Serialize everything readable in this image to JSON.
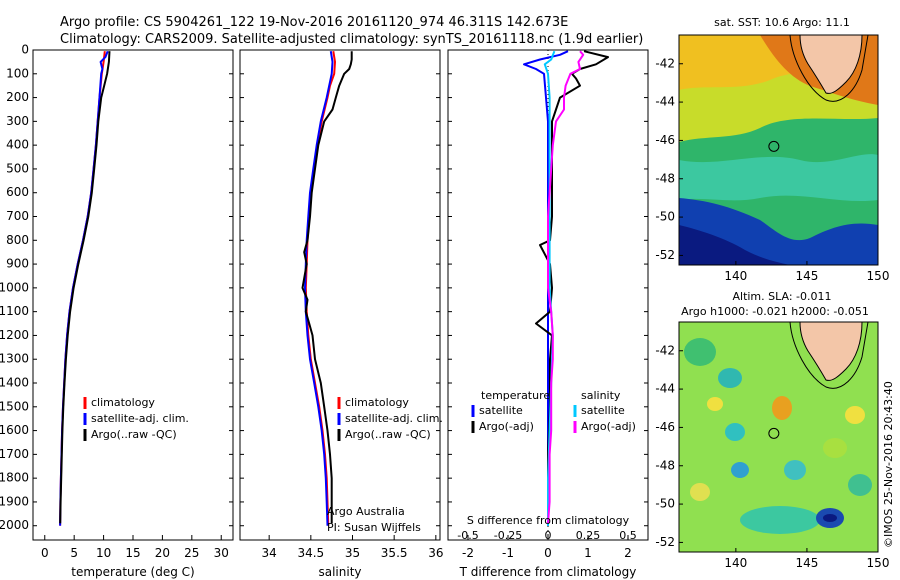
{
  "header": {
    "line1": "Argo profile: CS 5904261_122 19-Nov-2016 20161120_974 46.311S 142.673E",
    "line2": "Climatology: CARS2009. Satellite-adjusted climatology: synTS_20161118.nc (1.9d earlier)"
  },
  "credit": "©IMOS 25-Nov-2016 20:43:40",
  "colors": {
    "climatology": "#ff0000",
    "satellite": "#0000ff",
    "argo": "#000000",
    "sat_light": "#00c8ff",
    "argo_adj": "#ff00ff",
    "frame": "#000000"
  },
  "depth_ticks": [
    0,
    100,
    200,
    300,
    400,
    500,
    600,
    700,
    800,
    900,
    1000,
    1100,
    1200,
    1300,
    1400,
    1500,
    1600,
    1700,
    1800,
    1900,
    2000
  ],
  "chart_data": [
    {
      "id": "temperature",
      "type": "line",
      "xlabel": "temperature (deg C)",
      "xlim": [
        -2,
        32
      ],
      "ylim": [
        2060,
        0
      ],
      "xticks": [
        0,
        5,
        10,
        15,
        20,
        25,
        30
      ],
      "legend": {
        "position": "lower-center",
        "entries": [
          {
            "label": "climatology",
            "color_key": "climatology"
          },
          {
            "label": "satellite-adj. clim.",
            "color_key": "satellite"
          },
          {
            "label": "Argo(..raw -QC)",
            "color_key": "argo"
          }
        ]
      },
      "series": [
        {
          "name": "climatology",
          "color_key": "climatology",
          "depth": [
            5,
            50,
            100,
            200,
            300,
            400,
            500,
            600,
            700,
            800,
            900,
            1000,
            1100,
            1200,
            1300,
            1400,
            1500,
            1600,
            1700,
            1800,
            1900,
            2000
          ],
          "values": [
            10.2,
            10.0,
            9.7,
            9.3,
            9.0,
            8.7,
            8.3,
            7.9,
            7.3,
            6.5,
            5.6,
            4.8,
            4.2,
            3.8,
            3.5,
            3.3,
            3.1,
            2.95,
            2.85,
            2.75,
            2.65,
            2.6
          ]
        },
        {
          "name": "satellite-adj. clim.",
          "color_key": "satellite",
          "depth": [
            5,
            30,
            50,
            80,
            100,
            200,
            300,
            400,
            500,
            600,
            700,
            800,
            900,
            1000,
            1100,
            1200,
            1300,
            1400,
            1500,
            1600,
            1700,
            1800,
            1900,
            2000
          ],
          "values": [
            10.7,
            10.3,
            9.5,
            9.8,
            9.6,
            9.3,
            9.0,
            8.7,
            8.3,
            7.9,
            7.3,
            6.5,
            5.6,
            4.8,
            4.2,
            3.8,
            3.5,
            3.3,
            3.1,
            2.95,
            2.85,
            2.75,
            2.65,
            2.6
          ]
        },
        {
          "name": "Argo(..raw -QC)",
          "color_key": "argo",
          "depth": [
            5,
            50,
            100,
            150,
            200,
            300,
            400,
            500,
            600,
            700,
            800,
            900,
            1000,
            1100,
            1200,
            1300,
            1400,
            1500,
            1600,
            1700,
            1800,
            1900,
            1990
          ],
          "values": [
            11.0,
            10.9,
            10.6,
            10.1,
            9.6,
            9.1,
            8.8,
            8.4,
            8.0,
            7.4,
            6.6,
            5.7,
            4.9,
            4.3,
            3.9,
            3.6,
            3.35,
            3.15,
            3.0,
            2.9,
            2.8,
            2.7,
            2.62
          ]
        }
      ]
    },
    {
      "id": "salinity",
      "type": "line",
      "xlabel": "salinity",
      "xlim": [
        33.65,
        36.05
      ],
      "ylim": [
        2060,
        0
      ],
      "xticks": [
        34,
        34.5,
        35,
        35.5,
        36
      ],
      "legend": {
        "position": "lower-center",
        "entries": [
          {
            "label": "climatology",
            "color_key": "climatology"
          },
          {
            "label": "satellite-adj. clim.",
            "color_key": "satellite"
          },
          {
            "label": "Argo(..raw -QC)",
            "color_key": "argo"
          }
        ]
      },
      "annotation": {
        "line1": "Argo Australia",
        "line2": "PI: Susan Wijffels"
      },
      "series": [
        {
          "name": "climatology",
          "color_key": "climatology",
          "depth": [
            5,
            50,
            100,
            150,
            200,
            300,
            400,
            500,
            600,
            700,
            800,
            900,
            1000,
            1100,
            1200,
            1300,
            1400,
            1500,
            1600,
            1700,
            1800,
            1900,
            2000
          ],
          "values": [
            34.77,
            34.79,
            34.78,
            34.73,
            34.7,
            34.63,
            34.58,
            34.54,
            34.5,
            34.48,
            34.46,
            34.45,
            34.44,
            34.45,
            34.47,
            34.5,
            34.55,
            34.6,
            34.64,
            34.67,
            34.69,
            34.7,
            34.71
          ]
        },
        {
          "name": "satellite-adj. clim.",
          "color_key": "satellite",
          "depth": [
            5,
            50,
            100,
            150,
            200,
            300,
            400,
            500,
            600,
            700,
            800,
            900,
            1000,
            1100,
            1200,
            1300,
            1400,
            1500,
            1600,
            1700,
            1800,
            1900,
            2000
          ],
          "values": [
            34.74,
            34.76,
            34.75,
            34.72,
            34.69,
            34.62,
            34.57,
            34.53,
            34.49,
            34.47,
            34.45,
            34.44,
            34.43,
            34.44,
            34.46,
            34.49,
            34.54,
            34.59,
            34.63,
            34.66,
            34.68,
            34.69,
            34.7
          ]
        },
        {
          "name": "Argo(..raw -QC)",
          "color_key": "argo",
          "depth": [
            5,
            40,
            60,
            80,
            100,
            150,
            200,
            250,
            300,
            400,
            500,
            600,
            700,
            800,
            850,
            900,
            1000,
            1050,
            1100,
            1150,
            1200,
            1300,
            1400,
            1500,
            1600,
            1700,
            1800,
            1900,
            1990
          ],
          "values": [
            34.99,
            34.99,
            34.98,
            34.96,
            34.9,
            34.84,
            34.8,
            34.76,
            34.66,
            34.59,
            34.55,
            34.51,
            34.49,
            34.46,
            34.42,
            34.45,
            34.4,
            34.46,
            34.44,
            34.48,
            34.52,
            34.55,
            34.62,
            34.66,
            34.7,
            34.73,
            34.75,
            34.75,
            34.75
          ]
        }
      ]
    },
    {
      "id": "differences",
      "type": "line",
      "xlabel": "T difference from climatology",
      "xlabel_top": "S difference from climatology",
      "xlim": [
        -2.5,
        2.5
      ],
      "ylim": [
        2060,
        0
      ],
      "xticks_bottom": [
        -2,
        -1,
        0,
        1,
        2
      ],
      "xticks_top": [
        -0.5,
        -0.25,
        0,
        0.25,
        0.5
      ],
      "xticks_top_labels": [
        "-0.5",
        "-0.25",
        "0",
        "0.25",
        "0.5"
      ],
      "legend": {
        "position": "lower-center",
        "temperature_header": "temperature",
        "salinity_header": "salinity",
        "entries": [
          {
            "label": "satellite",
            "color_key": "satellite"
          },
          {
            "label": "Argo(-adj)",
            "color_key": "argo"
          },
          {
            "label": "satellite",
            "color_key": "sat_light"
          },
          {
            "label": "Argo(-adj)",
            "color_key": "argo_adj"
          }
        ]
      },
      "series": [
        {
          "name": "T satellite",
          "color_key": "satellite",
          "depth": [
            5,
            20,
            40,
            60,
            80,
            100,
            200,
            300,
            400,
            600,
            800,
            1000,
            1200,
            1600,
            2000
          ],
          "values": [
            0.5,
            0.3,
            -0.2,
            -0.6,
            -0.3,
            -0.1,
            -0.05,
            0.0,
            0.0,
            0.0,
            0.0,
            0.0,
            0.0,
            0.0,
            0.0
          ]
        },
        {
          "name": "T Argo(-adj)",
          "color_key": "argo",
          "depth": [
            5,
            30,
            60,
            80,
            100,
            120,
            150,
            200,
            250,
            300,
            400,
            500,
            700,
            800,
            820,
            900,
            1000,
            1100,
            1150,
            1200,
            1300,
            1500,
            1700,
            1900,
            1990
          ],
          "values": [
            0.9,
            1.5,
            1.2,
            0.8,
            0.6,
            0.7,
            0.8,
            0.3,
            0.2,
            0.1,
            0.1,
            0.1,
            0.1,
            0.05,
            -0.2,
            0.05,
            0.1,
            0.05,
            -0.3,
            0.1,
            0.05,
            0.05,
            0.0,
            0.0,
            0.0
          ]
        },
        {
          "name": "S satellite",
          "color_key": "sat_light",
          "depth": [
            5,
            40,
            60,
            100,
            200,
            300,
            400,
            600,
            800,
            1000,
            1200,
            1400,
            1600,
            1800,
            2000
          ],
          "values": [
            0.04,
            0.02,
            -0.02,
            0.0,
            0.01,
            0.01,
            0.01,
            0.01,
            0.01,
            0.01,
            0.03,
            0.02,
            0.01,
            0.0,
            0.0
          ]
        },
        {
          "name": "S Argo(-adj)",
          "color_key": "argo_adj",
          "depth": [
            5,
            20,
            50,
            80,
            100,
            150,
            200,
            250,
            300,
            350,
            400,
            500,
            600,
            700,
            800,
            900,
            1000,
            1100,
            1200,
            1230,
            1300,
            1400,
            1500,
            1600,
            1700,
            1800,
            1900,
            1990
          ],
          "values": [
            0.2,
            0.22,
            0.19,
            0.2,
            0.14,
            0.11,
            0.1,
            0.1,
            0.05,
            0.04,
            0.03,
            0.02,
            0.01,
            0.0,
            0.0,
            0.0,
            0.0,
            0.02,
            0.03,
            0.03,
            0.03,
            0.02,
            0.02,
            0.02,
            0.01,
            0.01,
            0.01,
            0.0
          ]
        }
      ]
    },
    {
      "id": "sst_map",
      "type": "heatmap",
      "title": "sat. SST: 10.6 Argo: 11.1",
      "xlim": [
        136,
        150
      ],
      "ylim": [
        -52.5,
        -40.5
      ],
      "xticks": [
        140,
        145,
        150
      ],
      "yticks": [
        -42,
        -44,
        -46,
        -48,
        -50,
        -52
      ],
      "marker": {
        "lon": 142.673,
        "lat": -46.311
      }
    },
    {
      "id": "sla_map",
      "type": "heatmap",
      "title_line1": "Altim. SLA: -0.011",
      "title_line2": "Argo h1000: -0.021 h2000: -0.051",
      "xlim": [
        136,
        150
      ],
      "ylim": [
        -52.5,
        -40.5
      ],
      "xticks": [
        140,
        145,
        150
      ],
      "yticks": [
        -42,
        -44,
        -46,
        -48,
        -50,
        -52
      ],
      "marker": {
        "lon": 142.673,
        "lat": -46.311
      }
    }
  ]
}
